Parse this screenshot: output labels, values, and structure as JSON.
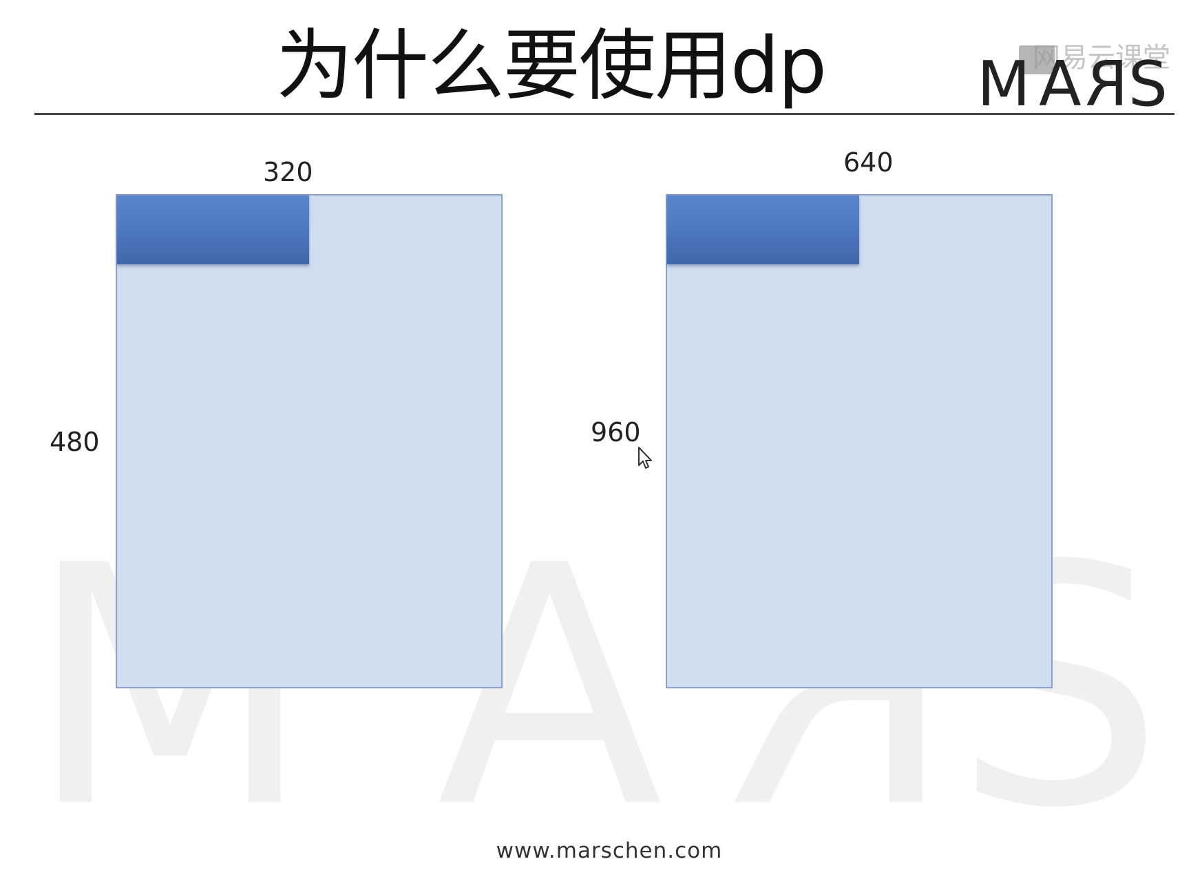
{
  "slide": {
    "title": "为什么要使用dp",
    "logo": {
      "m": "M",
      "a": "A",
      "r": "R",
      "s": "S"
    },
    "brand_watermark": "网易云课堂",
    "background_watermark": {
      "m": "M",
      "a": "A",
      "r": "R",
      "s": "S"
    },
    "footer_url": "www.marschen.com"
  },
  "screens": [
    {
      "width_label": "320",
      "height_label": "480",
      "width_value": 320,
      "height_value": 480
    },
    {
      "width_label": "640",
      "height_label": "960",
      "width_value": 640,
      "height_value": 960
    }
  ],
  "colors": {
    "screen_fill": "#d0ddef",
    "screen_border": "#8aa1cc",
    "bar_fill": "#4c76bd",
    "rule": "#444444"
  },
  "icons": {
    "cursor": "mouse-pointer-icon",
    "brand": "netease-cloud-classroom-icon"
  }
}
